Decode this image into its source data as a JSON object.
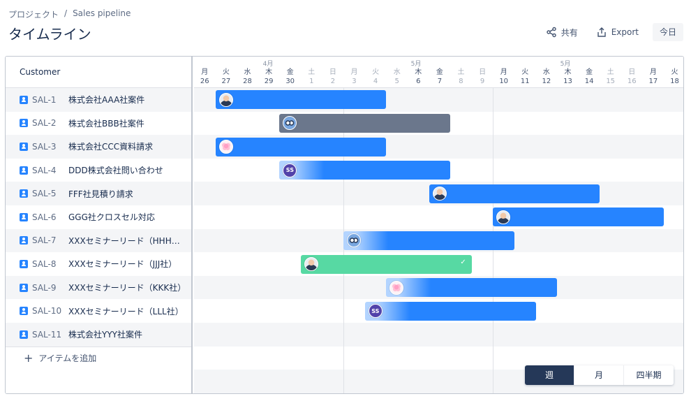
{
  "breadcrumb": {
    "project": "プロジェクト",
    "separator": "/",
    "current": "Sales pipeline"
  },
  "title": "タイムライン",
  "actions": {
    "share": "共有",
    "share_icon": "share-icon",
    "export": "Export",
    "export_icon": "export-icon",
    "today": "今日"
  },
  "list": {
    "column_header": "Customer",
    "add_item": "アイテムを追加",
    "items": [
      {
        "key": "SAL-1",
        "summary": "株式会社AAA社案件"
      },
      {
        "key": "SAL-2",
        "summary": "株式会社BBB社案件"
      },
      {
        "key": "SAL-3",
        "summary": "株式会社CCC資料請求"
      },
      {
        "key": "SAL-4",
        "summary": "DDD株式会社問い合わせ"
      },
      {
        "key": "SAL-5",
        "summary": "FFF社見積り請求"
      },
      {
        "key": "SAL-6",
        "summary": "GGG社クロスセル対応"
      },
      {
        "key": "SAL-7",
        "summary": "XXXセミナーリード（HHH社 ..."
      },
      {
        "key": "SAL-8",
        "summary": "XXXセミナーリード（JJJ社）"
      },
      {
        "key": "SAL-9",
        "summary": "XXXセミナーリード（KKK社）"
      },
      {
        "key": "SAL-10",
        "summary": "XXXセミナーリード（LLL社）"
      },
      {
        "key": "SAL-11",
        "summary": "株式会社YYY社案件"
      }
    ]
  },
  "calendar": {
    "months": [
      "4月",
      "5月",
      "5月"
    ],
    "days": [
      {
        "wd": "月",
        "d": "26",
        "weekend": false
      },
      {
        "wd": "火",
        "d": "27",
        "weekend": false
      },
      {
        "wd": "水",
        "d": "28",
        "weekend": false
      },
      {
        "wd": "木",
        "d": "29",
        "weekend": false
      },
      {
        "wd": "金",
        "d": "30",
        "weekend": false
      },
      {
        "wd": "土",
        "d": "1",
        "weekend": true
      },
      {
        "wd": "日",
        "d": "2",
        "weekend": true
      },
      {
        "wd": "月",
        "d": "3",
        "weekend": true
      },
      {
        "wd": "火",
        "d": "4",
        "weekend": true
      },
      {
        "wd": "水",
        "d": "5",
        "weekend": true
      },
      {
        "wd": "木",
        "d": "6",
        "weekend": false
      },
      {
        "wd": "金",
        "d": "7",
        "weekend": false
      },
      {
        "wd": "土",
        "d": "8",
        "weekend": true
      },
      {
        "wd": "日",
        "d": "9",
        "weekend": true
      },
      {
        "wd": "月",
        "d": "10",
        "weekend": false
      },
      {
        "wd": "火",
        "d": "11",
        "weekend": false
      },
      {
        "wd": "水",
        "d": "12",
        "weekend": false
      },
      {
        "wd": "木",
        "d": "13",
        "weekend": false
      },
      {
        "wd": "金",
        "d": "14",
        "weekend": false
      },
      {
        "wd": "土",
        "d": "15",
        "weekend": true
      },
      {
        "wd": "日",
        "d": "16",
        "weekend": true
      },
      {
        "wd": "月",
        "d": "17",
        "weekend": false
      },
      {
        "wd": "火",
        "d": "18",
        "weekend": false
      }
    ]
  },
  "bars": [
    {
      "start_day": 1,
      "end_day": 9,
      "avatar": "photo",
      "style": "blue",
      "color": "#2684ff"
    },
    {
      "start_day": 4,
      "end_day": 12,
      "avatar": "robot",
      "style": "gray",
      "color": "#6b778c"
    },
    {
      "start_day": 1,
      "end_day": 9,
      "avatar": "flower",
      "style": "blue",
      "color": "#2684ff"
    },
    {
      "start_day": 4,
      "end_day": 12,
      "avatar": "initials",
      "initials": "SS",
      "style": "fade",
      "color": "#2684ff"
    },
    {
      "start_day": 11,
      "end_day": 19,
      "avatar": "photo",
      "style": "blue",
      "color": "#2684ff"
    },
    {
      "start_day": 14,
      "end_day": 22,
      "avatar": "photo",
      "style": "blue",
      "color": "#2684ff"
    },
    {
      "start_day": 7,
      "end_day": 15,
      "avatar": "robot",
      "style": "fade",
      "color": "#2684ff"
    },
    {
      "start_day": 5,
      "end_day": 13,
      "avatar": "photo",
      "style": "green",
      "color": "#57d9a3",
      "done": true
    },
    {
      "start_day": 9,
      "end_day": 17,
      "avatar": "flower",
      "style": "fade",
      "color": "#2684ff"
    },
    {
      "start_day": 8,
      "end_day": 16,
      "avatar": "initials",
      "initials": "SS",
      "style": "fade",
      "color": "#2684ff"
    }
  ],
  "view_switch": {
    "options": [
      "週",
      "月",
      "四半期"
    ],
    "selected": "週"
  }
}
